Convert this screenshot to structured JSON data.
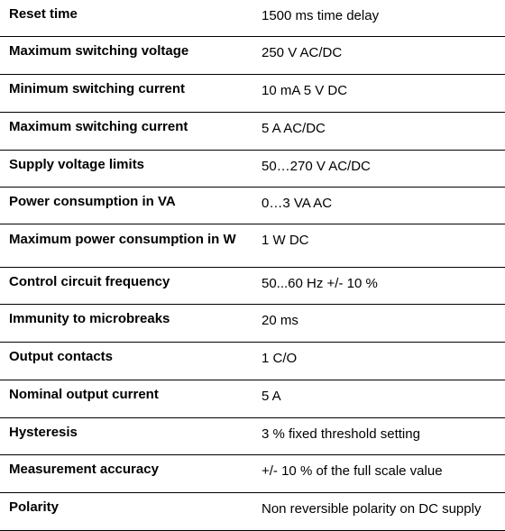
{
  "specs": [
    {
      "label": "Reset time",
      "value": "1500 ms time delay"
    },
    {
      "label": "Maximum switching voltage",
      "value": "250 V AC/DC"
    },
    {
      "label": "Minimum switching current",
      "value": "10 mA 5 V DC"
    },
    {
      "label": "Maximum switching current",
      "value": "5 A AC/DC"
    },
    {
      "label": "Supply voltage limits",
      "value": "50…270 V AC/DC"
    },
    {
      "label": "Power consumption in VA",
      "value": "0…3 VA AC"
    },
    {
      "label": "Maximum power consumption in W",
      "value": "1 W DC"
    },
    {
      "label": "Control circuit frequency",
      "value": "50...60 Hz +/- 10 %"
    },
    {
      "label": "Immunity to microbreaks",
      "value": "20 ms"
    },
    {
      "label": "Output contacts",
      "value": "1 C/O"
    },
    {
      "label": "Nominal output current",
      "value": "5 A"
    },
    {
      "label": "Hysteresis",
      "value": "3 % fixed threshold setting"
    },
    {
      "label": "Measurement accuracy",
      "value": "+/- 10 % of the full scale value"
    },
    {
      "label": "Polarity",
      "value": "Non reversible polarity on DC supply"
    }
  ]
}
